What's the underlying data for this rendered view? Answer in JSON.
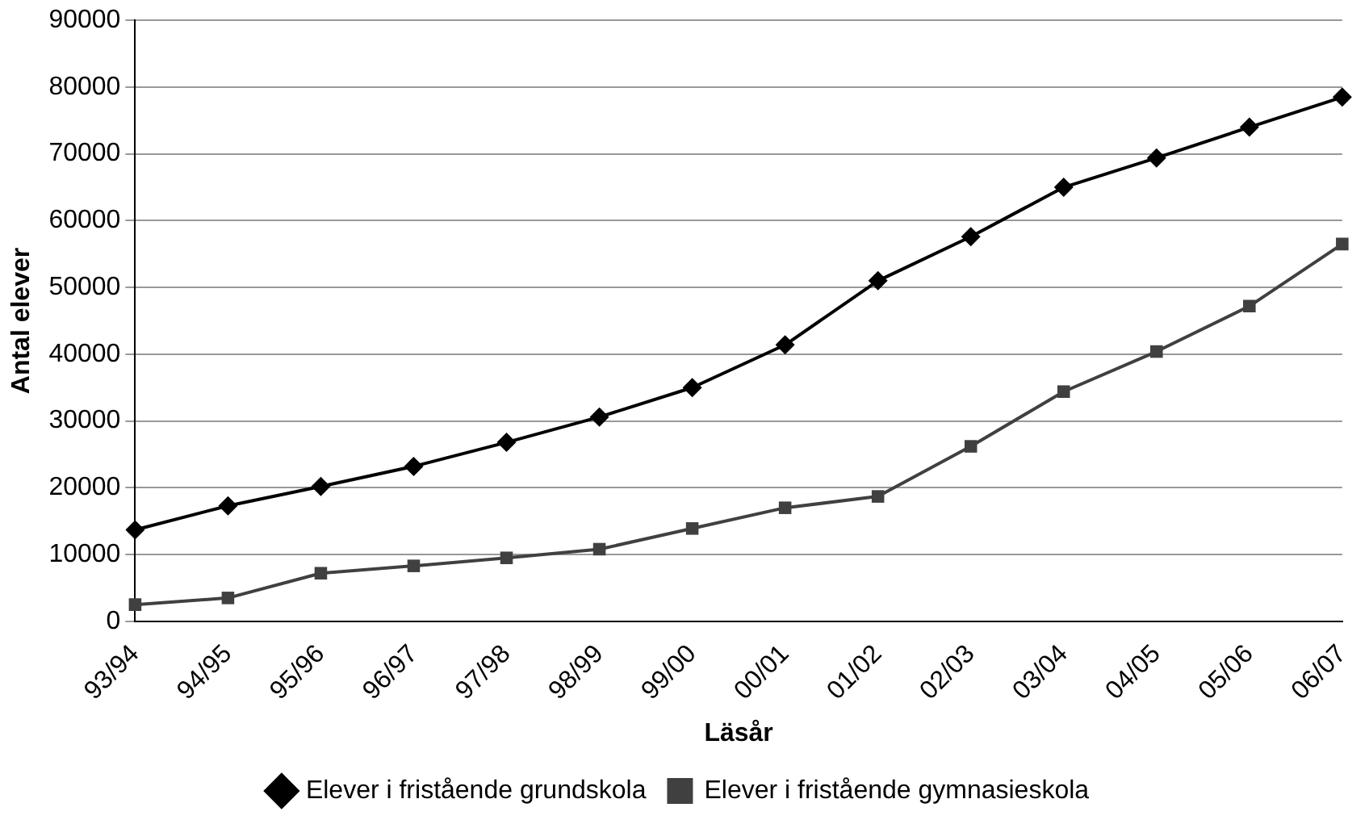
{
  "chart_data": {
    "type": "line",
    "xlabel": "Läsår",
    "ylabel": "Antal elever",
    "categories": [
      "93/94",
      "94/95",
      "95/96",
      "96/97",
      "97/98",
      "98/99",
      "99/00",
      "00/01",
      "01/02",
      "02/03",
      "03/04",
      "04/05",
      "05/06",
      "06/07"
    ],
    "series": [
      {
        "name": "Elever i fristående grundskola",
        "color": "#000000",
        "marker": "diamond",
        "values": [
          13700,
          17300,
          20200,
          23200,
          26800,
          30600,
          35000,
          41400,
          51000,
          57600,
          65000,
          69400,
          74000,
          78500
        ]
      },
      {
        "name": "Elever i fristående gymnasieskola",
        "color": "#404040",
        "marker": "square",
        "values": [
          2500,
          3500,
          7200,
          8300,
          9500,
          10800,
          13900,
          17000,
          18700,
          26200,
          34400,
          40400,
          47200,
          56500
        ]
      }
    ],
    "ylim": [
      0,
      90000
    ],
    "yticks": [
      0,
      10000,
      20000,
      30000,
      40000,
      50000,
      60000,
      70000,
      80000,
      90000
    ],
    "grid": "y",
    "legend": "bottom",
    "line_style": "solid"
  }
}
